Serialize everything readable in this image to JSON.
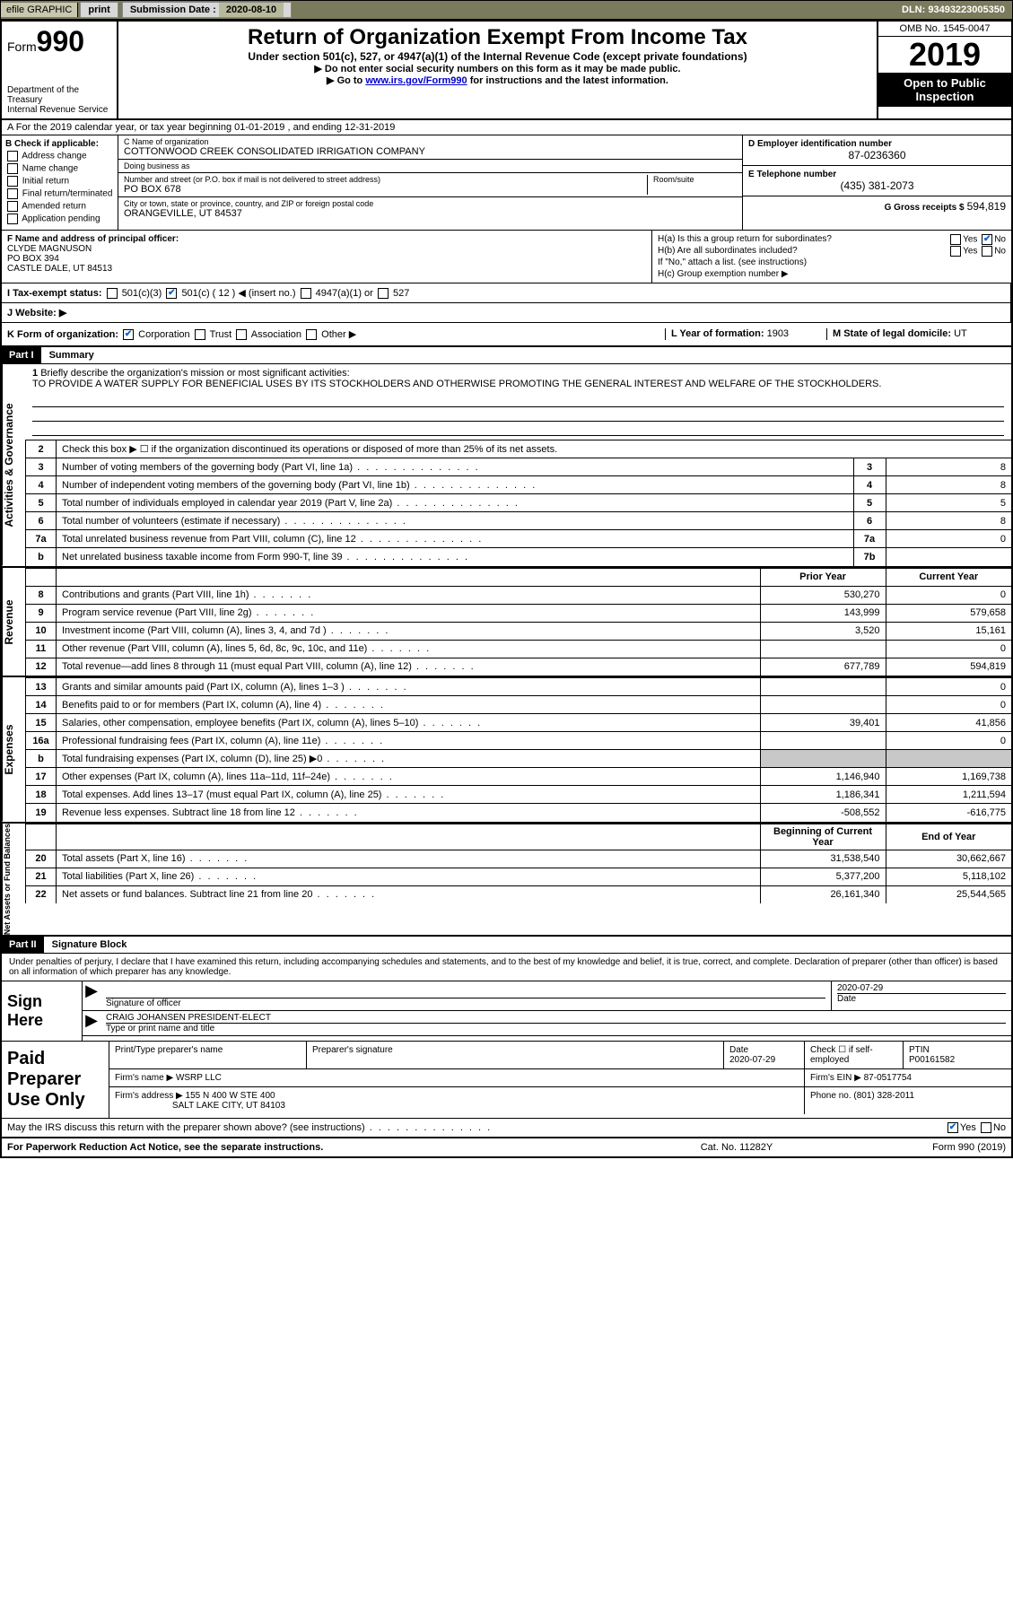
{
  "topbar": {
    "efile": "efile GRAPHIC",
    "print": "print",
    "sub_label": "Submission Date :",
    "sub_date": "2020-08-10",
    "dln": "DLN: 93493223005350"
  },
  "header": {
    "form_word": "Form",
    "form_num": "990",
    "dept": "Department of the Treasury\nInternal Revenue Service",
    "title": "Return of Organization Exempt From Income Tax",
    "subtitle": "Under section 501(c), 527, or 4947(a)(1) of the Internal Revenue Code (except private foundations)",
    "note1": "▶ Do not enter social security numbers on this form as it may be made public.",
    "note2_pre": "▶ Go to ",
    "note2_link": "www.irs.gov/Form990",
    "note2_post": " for instructions and the latest information.",
    "omb": "OMB No. 1545-0047",
    "year": "2019",
    "inspect": "Open to Public Inspection"
  },
  "row_a": "A For the 2019 calendar year, or tax year beginning 01-01-2019    , and ending 12-31-2019",
  "col_b": {
    "label": "B Check if applicable:",
    "opts": [
      "Address change",
      "Name change",
      "Initial return",
      "Final return/terminated",
      "Amended return",
      "Application pending"
    ]
  },
  "col_c": {
    "name_label": "C Name of organization",
    "name": "COTTONWOOD CREEK CONSOLIDATED IRRIGATION COMPANY",
    "dba_label": "Doing business as",
    "dba": "",
    "addr_label": "Number and street (or P.O. box if mail is not delivered to street address)",
    "room_label": "Room/suite",
    "addr": "PO BOX 678",
    "city_label": "City or town, state or province, country, and ZIP or foreign postal code",
    "city": "ORANGEVILLE, UT  84537"
  },
  "col_d": {
    "label": "D Employer identification number",
    "val": "87-0236360"
  },
  "col_e": {
    "label": "E Telephone number",
    "val": "(435) 381-2073"
  },
  "col_g": {
    "label": "G Gross receipts $",
    "val": "594,819"
  },
  "col_f": {
    "label": "F  Name and address of principal officer:",
    "name": "CLYDE MAGNUSON",
    "addr1": "PO BOX 394",
    "addr2": "CASTLE DALE, UT  84513"
  },
  "col_h": {
    "ha": "H(a)  Is this a group return for subordinates?",
    "hb": "H(b)  Are all subordinates included?",
    "hb_note": "If \"No,\" attach a list. (see instructions)",
    "hc": "H(c)  Group exemption number ▶",
    "yes": "Yes",
    "no": "No"
  },
  "row_i": {
    "label": "I   Tax-exempt status:",
    "o1": "501(c)(3)",
    "o2": "501(c) ( 12 ) ◀ (insert no.)",
    "o3": "4947(a)(1) or",
    "o4": "527"
  },
  "row_j": {
    "label": "J   Website: ▶"
  },
  "row_k": {
    "label": "K Form of organization:",
    "o1": "Corporation",
    "o2": "Trust",
    "o3": "Association",
    "o4": "Other ▶",
    "l_label": "L Year of formation:",
    "l_val": "1903",
    "m_label": "M State of legal domicile:",
    "m_val": "UT"
  },
  "part1": {
    "hdr": "Part I",
    "title": "Summary"
  },
  "vtabs": {
    "ag": "Activities & Governance",
    "rev": "Revenue",
    "exp": "Expenses",
    "na": "Net Assets or Fund Balances"
  },
  "mission": {
    "num": "1",
    "label": "Briefly describe the organization's mission or most significant activities:",
    "text": "TO PROVIDE A WATER SUPPLY FOR BENEFICIAL USES BY ITS STOCKHOLDERS AND OTHERWISE PROMOTING THE GENERAL INTEREST AND WELFARE OF THE STOCKHOLDERS."
  },
  "lines_ag": [
    {
      "n": "2",
      "d": "Check this box ▶ ☐  if the organization discontinued its operations or disposed of more than 25% of its net assets.",
      "box": "",
      "v": ""
    },
    {
      "n": "3",
      "d": "Number of voting members of the governing body (Part VI, line 1a)",
      "box": "3",
      "v": "8"
    },
    {
      "n": "4",
      "d": "Number of independent voting members of the governing body (Part VI, line 1b)",
      "box": "4",
      "v": "8"
    },
    {
      "n": "5",
      "d": "Total number of individuals employed in calendar year 2019 (Part V, line 2a)",
      "box": "5",
      "v": "5"
    },
    {
      "n": "6",
      "d": "Total number of volunteers (estimate if necessary)",
      "box": "6",
      "v": "8"
    },
    {
      "n": "7a",
      "d": "Total unrelated business revenue from Part VIII, column (C), line 12",
      "box": "7a",
      "v": "0"
    },
    {
      "n": "b",
      "d": "Net unrelated business taxable income from Form 990-T, line 39",
      "box": "7b",
      "v": ""
    }
  ],
  "col_hdrs": {
    "prior": "Prior Year",
    "current": "Current Year"
  },
  "lines_rev": [
    {
      "n": "8",
      "d": "Contributions and grants (Part VIII, line 1h)",
      "p": "530,270",
      "c": "0"
    },
    {
      "n": "9",
      "d": "Program service revenue (Part VIII, line 2g)",
      "p": "143,999",
      "c": "579,658"
    },
    {
      "n": "10",
      "d": "Investment income (Part VIII, column (A), lines 3, 4, and 7d )",
      "p": "3,520",
      "c": "15,161"
    },
    {
      "n": "11",
      "d": "Other revenue (Part VIII, column (A), lines 5, 6d, 8c, 9c, 10c, and 11e)",
      "p": "",
      "c": "0"
    },
    {
      "n": "12",
      "d": "Total revenue—add lines 8 through 11 (must equal Part VIII, column (A), line 12)",
      "p": "677,789",
      "c": "594,819"
    }
  ],
  "lines_exp": [
    {
      "n": "13",
      "d": "Grants and similar amounts paid (Part IX, column (A), lines 1–3 )",
      "p": "",
      "c": "0"
    },
    {
      "n": "14",
      "d": "Benefits paid to or for members (Part IX, column (A), line 4)",
      "p": "",
      "c": "0"
    },
    {
      "n": "15",
      "d": "Salaries, other compensation, employee benefits (Part IX, column (A), lines 5–10)",
      "p": "39,401",
      "c": "41,856"
    },
    {
      "n": "16a",
      "d": "Professional fundraising fees (Part IX, column (A), line 11e)",
      "p": "",
      "c": "0"
    },
    {
      "n": "b",
      "d": "Total fundraising expenses (Part IX, column (D), line 25) ▶0",
      "p": "grey",
      "c": "grey"
    },
    {
      "n": "17",
      "d": "Other expenses (Part IX, column (A), lines 11a–11d, 11f–24e)",
      "p": "1,146,940",
      "c": "1,169,738"
    },
    {
      "n": "18",
      "d": "Total expenses. Add lines 13–17 (must equal Part IX, column (A), line 25)",
      "p": "1,186,341",
      "c": "1,211,594"
    },
    {
      "n": "19",
      "d": "Revenue less expenses. Subtract line 18 from line 12",
      "p": "-508,552",
      "c": "-616,775"
    }
  ],
  "col_hdrs2": {
    "begin": "Beginning of Current Year",
    "end": "End of Year"
  },
  "lines_na": [
    {
      "n": "20",
      "d": "Total assets (Part X, line 16)",
      "p": "31,538,540",
      "c": "30,662,667"
    },
    {
      "n": "21",
      "d": "Total liabilities (Part X, line 26)",
      "p": "5,377,200",
      "c": "5,118,102"
    },
    {
      "n": "22",
      "d": "Net assets or fund balances. Subtract line 21 from line 20",
      "p": "26,161,340",
      "c": "25,544,565"
    }
  ],
  "part2": {
    "hdr": "Part II",
    "title": "Signature Block"
  },
  "sig": {
    "decl": "Under penalties of perjury, I declare that I have examined this return, including accompanying schedules and statements, and to the best of my knowledge and belief, it is true, correct, and complete. Declaration of preparer (other than officer) is based on all information of which preparer has any knowledge.",
    "sign_here": "Sign Here",
    "sig_officer": "Signature of officer",
    "date_label": "Date",
    "date": "2020-07-29",
    "name": "CRAIG JOHANSEN  PRESIDENT-ELECT",
    "name_label": "Type or print name and title"
  },
  "paid": {
    "label": "Paid Preparer Use Only",
    "r1": {
      "c1": "Print/Type preparer's name",
      "c2": "Preparer's signature",
      "c3_l": "Date",
      "c3_v": "2020-07-29",
      "c4": "Check ☐ if self-employed",
      "c5_l": "PTIN",
      "c5_v": "P00161582"
    },
    "r2": {
      "c1": "Firm's name    ▶",
      "c1v": "WSRP LLC",
      "c2": "Firm's EIN ▶",
      "c2v": "87-0517754"
    },
    "r3": {
      "c1": "Firm's address ▶",
      "c1v1": "155 N 400 W STE 400",
      "c1v2": "SALT LAKE CITY, UT  84103",
      "c2": "Phone no.",
      "c2v": "(801) 328-2011"
    }
  },
  "discuss": {
    "q": "May the IRS discuss this return with the preparer shown above? (see instructions)",
    "yes": "Yes",
    "no": "No"
  },
  "footer": {
    "l": "For Paperwork Reduction Act Notice, see the separate instructions.",
    "m": "Cat. No. 11282Y",
    "r": "Form 990 (2019)"
  }
}
